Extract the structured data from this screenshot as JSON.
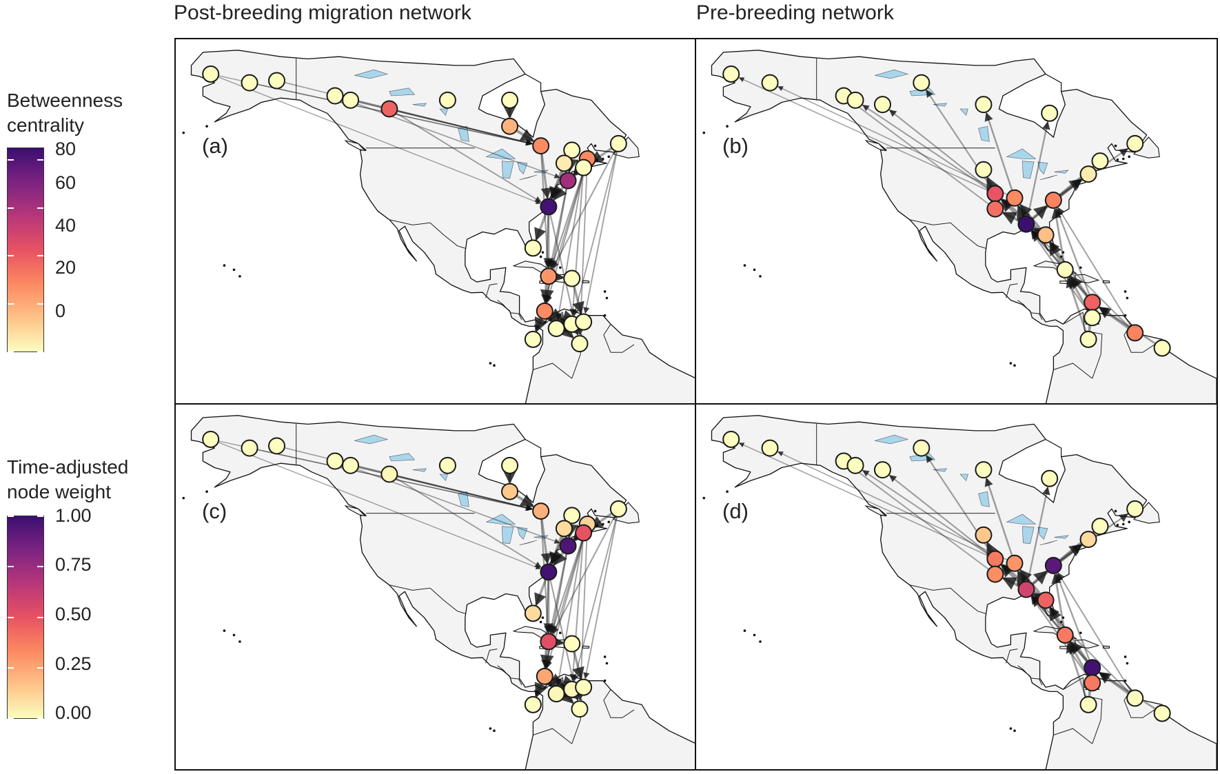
{
  "titles": {
    "left": "Post-breeding migration network",
    "right": "Pre-breeding network"
  },
  "legends": {
    "betweenness": {
      "title_line1": "Betweenness",
      "title_line2": "centrality",
      "ticks": [
        "80",
        "60",
        "40",
        "20",
        "0"
      ],
      "min": 0,
      "max": 85
    },
    "node_weight": {
      "title_line1": "Time-adjusted",
      "title_line2": "node weight",
      "ticks": [
        "1.00",
        "0.75",
        "0.50",
        "0.25",
        "0.00"
      ],
      "min": 0,
      "max": 1
    }
  },
  "colormap": [
    "#fcfdbf",
    "#fec287",
    "#fc8961",
    "#e75263",
    "#b73779",
    "#7c2382",
    "#3b0f70"
  ],
  "colors": {
    "land": "#f3f3f3",
    "coast": "#111111",
    "lake": "#a9d6ea",
    "edge": "#222222",
    "node_stroke": "#1a1a1a"
  },
  "panels": [
    {
      "label": "(a)",
      "network": "post-breeding",
      "metric": "betweenness",
      "nodes": [
        {
          "lon": -163,
          "lat": 66,
          "v": 0
        },
        {
          "lon": -153,
          "lat": 64,
          "v": 0
        },
        {
          "lon": -146,
          "lat": 64.5,
          "v": 0
        },
        {
          "lon": -131,
          "lat": 61,
          "v": 0
        },
        {
          "lon": -127,
          "lat": 60,
          "v": 0
        },
        {
          "lon": -117,
          "lat": 58,
          "v": 38
        },
        {
          "lon": -102,
          "lat": 60,
          "v": 0
        },
        {
          "lon": -86,
          "lat": 60,
          "v": 0
        },
        {
          "lon": -86,
          "lat": 54,
          "v": 18
        },
        {
          "lon": -78,
          "lat": 49.5,
          "v": 28
        },
        {
          "lon": -70,
          "lat": 48.5,
          "v": 0
        },
        {
          "lon": -72,
          "lat": 45.5,
          "v": 4
        },
        {
          "lon": -66,
          "lat": 46.5,
          "v": 28
        },
        {
          "lon": -58,
          "lat": 50,
          "v": 0
        },
        {
          "lon": -67,
          "lat": 44.5,
          "v": 0
        },
        {
          "lon": -71,
          "lat": 41.5,
          "v": 62
        },
        {
          "lon": -76,
          "lat": 35.5,
          "v": 83
        },
        {
          "lon": -80,
          "lat": 26,
          "v": 0
        },
        {
          "lon": -76,
          "lat": 19.5,
          "v": 25
        },
        {
          "lon": -70,
          "lat": 19,
          "v": 0
        },
        {
          "lon": -77,
          "lat": 11.5,
          "v": 28
        },
        {
          "lon": -74,
          "lat": 7.5,
          "v": 0
        },
        {
          "lon": -70,
          "lat": 8.5,
          "v": 0
        },
        {
          "lon": -67,
          "lat": 9,
          "v": 0
        },
        {
          "lon": -80,
          "lat": 5,
          "v": 0
        },
        {
          "lon": -68,
          "lat": 4,
          "v": 0
        }
      ],
      "edges": [
        [
          0,
          9
        ],
        [
          1,
          9
        ],
        [
          2,
          9
        ],
        [
          3,
          9
        ],
        [
          4,
          9
        ],
        [
          5,
          9
        ],
        [
          7,
          8
        ],
        [
          8,
          9
        ],
        [
          3,
          15
        ],
        [
          5,
          16
        ],
        [
          0,
          16
        ],
        [
          9,
          16
        ],
        [
          10,
          15
        ],
        [
          11,
          15
        ],
        [
          12,
          15
        ],
        [
          13,
          14
        ],
        [
          14,
          15
        ],
        [
          15,
          16
        ],
        [
          16,
          17
        ],
        [
          16,
          18
        ],
        [
          15,
          18
        ],
        [
          12,
          18
        ],
        [
          13,
          18
        ],
        [
          18,
          19
        ],
        [
          18,
          20
        ],
        [
          16,
          20
        ],
        [
          13,
          23
        ],
        [
          12,
          25
        ],
        [
          14,
          22
        ],
        [
          20,
          21
        ],
        [
          20,
          22
        ],
        [
          20,
          23
        ],
        [
          20,
          24
        ],
        [
          20,
          25
        ],
        [
          22,
          23
        ],
        [
          19,
          23
        ],
        [
          15,
          20
        ],
        [
          12,
          20
        ],
        [
          9,
          18
        ],
        [
          11,
          16
        ],
        [
          10,
          16
        ],
        [
          14,
          21
        ],
        [
          13,
          22
        ],
        [
          12,
          24
        ],
        [
          16,
          25
        ]
      ]
    },
    {
      "label": "(b)",
      "network": "pre-breeding",
      "metric": "betweenness",
      "nodes": [
        {
          "lon": -163,
          "lat": 66,
          "v": 0
        },
        {
          "lon": -153,
          "lat": 64,
          "v": 0
        },
        {
          "lon": -134,
          "lat": 61,
          "v": 0
        },
        {
          "lon": -131,
          "lat": 60,
          "v": 0
        },
        {
          "lon": -124,
          "lat": 59,
          "v": 0
        },
        {
          "lon": -114,
          "lat": 64,
          "v": 0
        },
        {
          "lon": -98,
          "lat": 59,
          "v": 0
        },
        {
          "lon": -81,
          "lat": 57,
          "v": 0
        },
        {
          "lon": -59,
          "lat": 50,
          "v": 0
        },
        {
          "lon": -68,
          "lat": 46,
          "v": 0
        },
        {
          "lon": -98,
          "lat": 44,
          "v": 0
        },
        {
          "lon": -71,
          "lat": 43,
          "v": 4
        },
        {
          "lon": -95,
          "lat": 38.5,
          "v": 42
        },
        {
          "lon": -90,
          "lat": 37.5,
          "v": 28
        },
        {
          "lon": -80,
          "lat": 37,
          "v": 30
        },
        {
          "lon": -95,
          "lat": 35,
          "v": 35
        },
        {
          "lon": -87,
          "lat": 31.5,
          "v": 85
        },
        {
          "lon": -82,
          "lat": 29,
          "v": 15
        },
        {
          "lon": -77,
          "lat": 21,
          "v": 0
        },
        {
          "lon": -70,
          "lat": 13.5,
          "v": 38
        },
        {
          "lon": -70,
          "lat": 10,
          "v": 0
        },
        {
          "lon": -59,
          "lat": 6.5,
          "v": 30
        },
        {
          "lon": -71,
          "lat": 5,
          "v": 0
        },
        {
          "lon": -52,
          "lat": 3,
          "v": 0
        }
      ],
      "edges": [
        [
          12,
          0
        ],
        [
          13,
          1
        ],
        [
          15,
          2
        ],
        [
          12,
          3
        ],
        [
          12,
          4
        ],
        [
          12,
          5
        ],
        [
          13,
          6
        ],
        [
          16,
          7
        ],
        [
          14,
          8
        ],
        [
          14,
          9
        ],
        [
          12,
          10
        ],
        [
          14,
          11
        ],
        [
          16,
          12
        ],
        [
          16,
          13
        ],
        [
          16,
          14
        ],
        [
          16,
          15
        ],
        [
          17,
          16
        ],
        [
          18,
          17
        ],
        [
          19,
          18
        ],
        [
          20,
          19
        ],
        [
          21,
          19
        ],
        [
          22,
          19
        ],
        [
          23,
          19
        ],
        [
          18,
          16
        ],
        [
          19,
          17
        ],
        [
          19,
          14
        ],
        [
          21,
          14
        ],
        [
          20,
          16
        ],
        [
          22,
          18
        ],
        [
          17,
          12
        ],
        [
          18,
          14
        ],
        [
          21,
          16
        ],
        [
          19,
          16
        ],
        [
          20,
          18
        ],
        [
          16,
          11
        ],
        [
          17,
          13
        ]
      ]
    },
    {
      "label": "(c)",
      "network": "post-breeding",
      "metric": "node_weight",
      "nodes": [
        {
          "lon": -163,
          "lat": 66,
          "v": 0
        },
        {
          "lon": -153,
          "lat": 64,
          "v": 0
        },
        {
          "lon": -146,
          "lat": 64.5,
          "v": 0
        },
        {
          "lon": -131,
          "lat": 61,
          "v": 0
        },
        {
          "lon": -127,
          "lat": 60,
          "v": 0
        },
        {
          "lon": -117,
          "lat": 58,
          "v": 0.02
        },
        {
          "lon": -102,
          "lat": 60,
          "v": 0
        },
        {
          "lon": -86,
          "lat": 60,
          "v": 0
        },
        {
          "lon": -86,
          "lat": 54,
          "v": 0.15
        },
        {
          "lon": -78,
          "lat": 49.5,
          "v": 0.22
        },
        {
          "lon": -70,
          "lat": 48.5,
          "v": 0
        },
        {
          "lon": -72,
          "lat": 45.5,
          "v": 0.1
        },
        {
          "lon": -66,
          "lat": 46.5,
          "v": 0.12
        },
        {
          "lon": -58,
          "lat": 50,
          "v": 0
        },
        {
          "lon": -67,
          "lat": 44.5,
          "v": 0.5
        },
        {
          "lon": -71,
          "lat": 41.5,
          "v": 0.95
        },
        {
          "lon": -76,
          "lat": 35.5,
          "v": 0.98
        },
        {
          "lon": -80,
          "lat": 26,
          "v": 0.1
        },
        {
          "lon": -76,
          "lat": 19.5,
          "v": 0.52
        },
        {
          "lon": -70,
          "lat": 19,
          "v": 0
        },
        {
          "lon": -77,
          "lat": 11.5,
          "v": 0.25
        },
        {
          "lon": -74,
          "lat": 7.5,
          "v": 0.02
        },
        {
          "lon": -70,
          "lat": 8.5,
          "v": 0.02
        },
        {
          "lon": -67,
          "lat": 9,
          "v": 0
        },
        {
          "lon": -80,
          "lat": 5,
          "v": 0
        },
        {
          "lon": -68,
          "lat": 4,
          "v": 0
        }
      ],
      "edges": [
        [
          0,
          9
        ],
        [
          1,
          9
        ],
        [
          2,
          9
        ],
        [
          3,
          9
        ],
        [
          4,
          9
        ],
        [
          5,
          9
        ],
        [
          7,
          8
        ],
        [
          8,
          9
        ],
        [
          3,
          15
        ],
        [
          5,
          16
        ],
        [
          0,
          16
        ],
        [
          9,
          16
        ],
        [
          10,
          15
        ],
        [
          11,
          15
        ],
        [
          12,
          15
        ],
        [
          13,
          14
        ],
        [
          14,
          15
        ],
        [
          15,
          16
        ],
        [
          16,
          17
        ],
        [
          16,
          18
        ],
        [
          15,
          18
        ],
        [
          12,
          18
        ],
        [
          13,
          18
        ],
        [
          18,
          19
        ],
        [
          18,
          20
        ],
        [
          16,
          20
        ],
        [
          13,
          23
        ],
        [
          12,
          25
        ],
        [
          14,
          22
        ],
        [
          20,
          21
        ],
        [
          20,
          22
        ],
        [
          20,
          23
        ],
        [
          20,
          24
        ],
        [
          20,
          25
        ],
        [
          22,
          23
        ],
        [
          19,
          23
        ],
        [
          15,
          20
        ],
        [
          12,
          20
        ],
        [
          9,
          18
        ],
        [
          11,
          16
        ],
        [
          10,
          16
        ],
        [
          14,
          21
        ],
        [
          13,
          22
        ],
        [
          12,
          24
        ],
        [
          16,
          25
        ]
      ]
    },
    {
      "label": "(d)",
      "network": "pre-breeding",
      "metric": "node_weight",
      "nodes": [
        {
          "lon": -163,
          "lat": 66,
          "v": 0
        },
        {
          "lon": -153,
          "lat": 64,
          "v": 0
        },
        {
          "lon": -134,
          "lat": 61,
          "v": 0
        },
        {
          "lon": -131,
          "lat": 60,
          "v": 0
        },
        {
          "lon": -124,
          "lat": 59,
          "v": 0
        },
        {
          "lon": -114,
          "lat": 64,
          "v": 0
        },
        {
          "lon": -98,
          "lat": 59,
          "v": 0
        },
        {
          "lon": -81,
          "lat": 57,
          "v": 0
        },
        {
          "lon": -59,
          "lat": 50,
          "v": 0
        },
        {
          "lon": -68,
          "lat": 46,
          "v": 0
        },
        {
          "lon": -98,
          "lat": 44,
          "v": 0.15
        },
        {
          "lon": -71,
          "lat": 43,
          "v": 0.1
        },
        {
          "lon": -95,
          "lat": 38.5,
          "v": 0.38
        },
        {
          "lon": -90,
          "lat": 37.5,
          "v": 0.3
        },
        {
          "lon": -80,
          "lat": 37,
          "v": 0.92
        },
        {
          "lon": -95,
          "lat": 35,
          "v": 0.32
        },
        {
          "lon": -87,
          "lat": 31.5,
          "v": 0.58
        },
        {
          "lon": -82,
          "lat": 29,
          "v": 0.45
        },
        {
          "lon": -77,
          "lat": 21,
          "v": 0.38
        },
        {
          "lon": -70,
          "lat": 13.5,
          "v": 0.98
        },
        {
          "lon": -70,
          "lat": 10,
          "v": 0.38
        },
        {
          "lon": -59,
          "lat": 6.5,
          "v": 0
        },
        {
          "lon": -71,
          "lat": 5,
          "v": 0
        },
        {
          "lon": -52,
          "lat": 3,
          "v": 0
        }
      ],
      "edges": [
        [
          12,
          0
        ],
        [
          13,
          1
        ],
        [
          15,
          2
        ],
        [
          12,
          3
        ],
        [
          12,
          4
        ],
        [
          12,
          5
        ],
        [
          13,
          6
        ],
        [
          16,
          7
        ],
        [
          14,
          8
        ],
        [
          14,
          9
        ],
        [
          12,
          10
        ],
        [
          14,
          11
        ],
        [
          16,
          12
        ],
        [
          16,
          13
        ],
        [
          16,
          14
        ],
        [
          16,
          15
        ],
        [
          17,
          16
        ],
        [
          18,
          17
        ],
        [
          19,
          18
        ],
        [
          20,
          19
        ],
        [
          21,
          19
        ],
        [
          22,
          19
        ],
        [
          23,
          19
        ],
        [
          18,
          16
        ],
        [
          19,
          17
        ],
        [
          19,
          14
        ],
        [
          21,
          14
        ],
        [
          20,
          16
        ],
        [
          22,
          18
        ],
        [
          17,
          12
        ],
        [
          18,
          14
        ],
        [
          21,
          16
        ],
        [
          19,
          16
        ],
        [
          20,
          18
        ],
        [
          16,
          11
        ],
        [
          17,
          13
        ]
      ]
    }
  ]
}
